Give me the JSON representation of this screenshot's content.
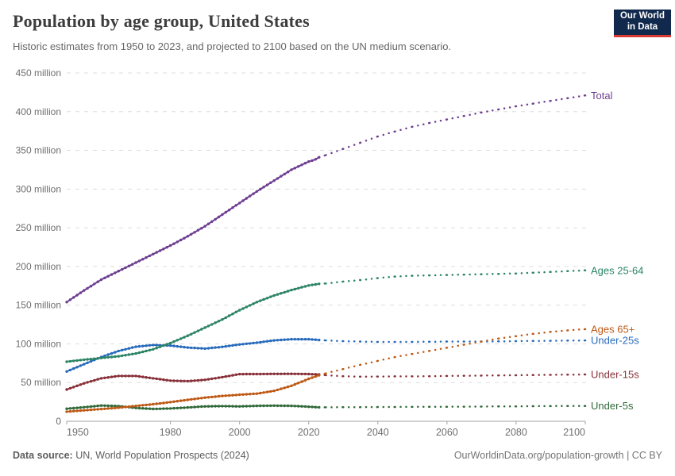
{
  "header": {
    "title": "Population by age group, United States",
    "subtitle": "Historic estimates from 1950 to 2023, and projected to 2100 based on the UN medium scenario."
  },
  "logo": {
    "line1": "Our World",
    "line2": "in Data",
    "bg_color": "#10294C",
    "accent_color": "#D93B32"
  },
  "footer": {
    "source_label": "Data source:",
    "source_text": " UN, World Population Prospects (2024)",
    "credit_text": "OurWorldinData.org/population-growth | CC BY"
  },
  "chart_data": {
    "type": "line",
    "title": "Population by age group, United States",
    "xlabel": "",
    "ylabel": "",
    "xlim": [
      1950,
      2100
    ],
    "ylim": [
      0,
      450
    ],
    "x_ticks": [
      1950,
      1980,
      2000,
      2020,
      2040,
      2060,
      2080,
      2100
    ],
    "y_ticks": [
      0,
      50,
      100,
      150,
      200,
      250,
      300,
      350,
      400,
      450
    ],
    "y_tick_unit": "million",
    "grid": "horizontal-dashed",
    "legend_position": "right-end-labels",
    "historic_end_year": 2023,
    "historic_style": "solid-beaded",
    "projection_style": "dotted",
    "series": [
      {
        "id": "under-5s",
        "label": "Under-5s",
        "color": "#31693A",
        "historic": [
          [
            1950,
            16.2
          ],
          [
            1955,
            18.1
          ],
          [
            1960,
            20.3
          ],
          [
            1965,
            19.6
          ],
          [
            1970,
            17.2
          ],
          [
            1975,
            15.9
          ],
          [
            1980,
            16.5
          ],
          [
            1985,
            17.8
          ],
          [
            1990,
            19.2
          ],
          [
            1995,
            19.6
          ],
          [
            2000,
            19.2
          ],
          [
            2005,
            19.9
          ],
          [
            2010,
            20.2
          ],
          [
            2015,
            19.9
          ],
          [
            2020,
            18.8
          ],
          [
            2023,
            18
          ]
        ],
        "projection": [
          [
            2023,
            18
          ],
          [
            2025,
            18
          ],
          [
            2030,
            18.2
          ],
          [
            2035,
            18.3
          ],
          [
            2040,
            18.4
          ],
          [
            2045,
            18.5
          ],
          [
            2050,
            18.6
          ],
          [
            2055,
            18.7
          ],
          [
            2060,
            18.8
          ],
          [
            2065,
            18.9
          ],
          [
            2070,
            19
          ],
          [
            2075,
            19.2
          ],
          [
            2080,
            19.3
          ],
          [
            2085,
            19.5
          ],
          [
            2090,
            19.6
          ],
          [
            2095,
            19.7
          ],
          [
            2100,
            19.8
          ]
        ]
      },
      {
        "id": "under-15s",
        "label": "Under-15s",
        "color": "#883039",
        "historic": [
          [
            1950,
            41
          ],
          [
            1955,
            49
          ],
          [
            1960,
            55.5
          ],
          [
            1965,
            58.5
          ],
          [
            1970,
            58.5
          ],
          [
            1975,
            55.5
          ],
          [
            1980,
            52.5
          ],
          [
            1985,
            51.8
          ],
          [
            1990,
            53.5
          ],
          [
            1995,
            57
          ],
          [
            2000,
            60.9
          ],
          [
            2005,
            61
          ],
          [
            2010,
            61.2
          ],
          [
            2015,
            61.3
          ],
          [
            2020,
            61
          ],
          [
            2023,
            60.5
          ]
        ],
        "projection": [
          [
            2023,
            60.5
          ],
          [
            2025,
            59.5
          ],
          [
            2030,
            58.2
          ],
          [
            2035,
            57.6
          ],
          [
            2040,
            57.8
          ],
          [
            2045,
            58
          ],
          [
            2050,
            58
          ],
          [
            2055,
            58.2
          ],
          [
            2060,
            58.5
          ],
          [
            2065,
            58.8
          ],
          [
            2070,
            59
          ],
          [
            2075,
            59.3
          ],
          [
            2080,
            59.5
          ],
          [
            2085,
            59.8
          ],
          [
            2090,
            60
          ],
          [
            2095,
            60.2
          ],
          [
            2100,
            60.5
          ]
        ]
      },
      {
        "id": "under-25s",
        "label": "Under-25s",
        "color": "#286BBB",
        "historic": [
          [
            1950,
            64.3
          ],
          [
            1955,
            73.7
          ],
          [
            1960,
            82.9
          ],
          [
            1965,
            90.8
          ],
          [
            1970,
            96.3
          ],
          [
            1975,
            98.5
          ],
          [
            1980,
            97.8
          ],
          [
            1985,
            95.2
          ],
          [
            1990,
            93.9
          ],
          [
            1995,
            96.1
          ],
          [
            2000,
            99.2
          ],
          [
            2005,
            101.5
          ],
          [
            2010,
            104.5
          ],
          [
            2015,
            106
          ],
          [
            2020,
            106
          ],
          [
            2023,
            105
          ]
        ],
        "projection": [
          [
            2023,
            105
          ],
          [
            2025,
            104.5
          ],
          [
            2030,
            103.5
          ],
          [
            2035,
            103
          ],
          [
            2040,
            102.5
          ],
          [
            2045,
            102.5
          ],
          [
            2050,
            102.5
          ],
          [
            2055,
            102.8
          ],
          [
            2060,
            103
          ],
          [
            2065,
            103
          ],
          [
            2070,
            103
          ],
          [
            2075,
            103.2
          ],
          [
            2080,
            103.5
          ],
          [
            2085,
            103.8
          ],
          [
            2090,
            104
          ],
          [
            2095,
            104.2
          ],
          [
            2100,
            104.5
          ]
        ]
      },
      {
        "id": "ages-65-plus",
        "label": "Ages 65+",
        "color": "#BE5915",
        "historic": [
          [
            1950,
            12.4
          ],
          [
            1955,
            14.1
          ],
          [
            1960,
            15.8
          ],
          [
            1965,
            17.5
          ],
          [
            1970,
            19.8
          ],
          [
            1975,
            22
          ],
          [
            1980,
            24.7
          ],
          [
            1985,
            27.7
          ],
          [
            1990,
            30.5
          ],
          [
            1995,
            32.7
          ],
          [
            2000,
            34.3
          ],
          [
            2005,
            35.7
          ],
          [
            2010,
            39.3
          ],
          [
            2015,
            45.8
          ],
          [
            2020,
            54.8
          ],
          [
            2023,
            59.5
          ]
        ],
        "projection": [
          [
            2023,
            59.5
          ],
          [
            2025,
            62
          ],
          [
            2030,
            67.5
          ],
          [
            2035,
            73
          ],
          [
            2040,
            78
          ],
          [
            2045,
            83
          ],
          [
            2050,
            87
          ],
          [
            2055,
            91
          ],
          [
            2060,
            95
          ],
          [
            2065,
            99
          ],
          [
            2070,
            103
          ],
          [
            2075,
            107
          ],
          [
            2080,
            110
          ],
          [
            2085,
            113
          ],
          [
            2090,
            115.5
          ],
          [
            2095,
            117.5
          ],
          [
            2100,
            119
          ]
        ]
      },
      {
        "id": "ages-25-64",
        "label": "Ages 25-64",
        "color": "#2C8465",
        "historic": [
          [
            1950,
            77
          ],
          [
            1955,
            79.5
          ],
          [
            1960,
            81.7
          ],
          [
            1965,
            84
          ],
          [
            1970,
            87.5
          ],
          [
            1975,
            93
          ],
          [
            1980,
            101
          ],
          [
            1985,
            110.5
          ],
          [
            1990,
            121
          ],
          [
            1995,
            131.5
          ],
          [
            2000,
            143.5
          ],
          [
            2005,
            154
          ],
          [
            2010,
            162.5
          ],
          [
            2015,
            169.5
          ],
          [
            2020,
            175.5
          ],
          [
            2023,
            177.5
          ]
        ],
        "projection": [
          [
            2023,
            177.5
          ],
          [
            2025,
            178
          ],
          [
            2030,
            180.5
          ],
          [
            2035,
            182.5
          ],
          [
            2040,
            185
          ],
          [
            2045,
            187
          ],
          [
            2050,
            188
          ],
          [
            2055,
            188.5
          ],
          [
            2060,
            189
          ],
          [
            2065,
            189.5
          ],
          [
            2070,
            190
          ],
          [
            2075,
            190.5
          ],
          [
            2080,
            191
          ],
          [
            2085,
            192
          ],
          [
            2090,
            193
          ],
          [
            2095,
            194
          ],
          [
            2100,
            195
          ]
        ]
      },
      {
        "id": "total",
        "label": "Total",
        "color": "#6D3E91",
        "historic": [
          [
            1950,
            154
          ],
          [
            1955,
            169
          ],
          [
            1960,
            183
          ],
          [
            1965,
            194
          ],
          [
            1970,
            205
          ],
          [
            1975,
            216
          ],
          [
            1980,
            227
          ],
          [
            1985,
            239
          ],
          [
            1990,
            252
          ],
          [
            1995,
            267
          ],
          [
            2000,
            282
          ],
          [
            2005,
            297
          ],
          [
            2010,
            311
          ],
          [
            2015,
            325
          ],
          [
            2020,
            335.5
          ],
          [
            2021,
            336.8
          ],
          [
            2022,
            338.5
          ],
          [
            2023,
            341
          ]
        ],
        "projection": [
          [
            2023,
            341
          ],
          [
            2025,
            344
          ],
          [
            2030,
            352
          ],
          [
            2035,
            360
          ],
          [
            2040,
            368
          ],
          [
            2045,
            374.5
          ],
          [
            2050,
            380.5
          ],
          [
            2055,
            385.5
          ],
          [
            2060,
            390
          ],
          [
            2065,
            394.5
          ],
          [
            2070,
            399
          ],
          [
            2075,
            403
          ],
          [
            2080,
            407
          ],
          [
            2085,
            410.5
          ],
          [
            2090,
            414
          ],
          [
            2095,
            417.5
          ],
          [
            2100,
            421
          ]
        ]
      }
    ]
  }
}
